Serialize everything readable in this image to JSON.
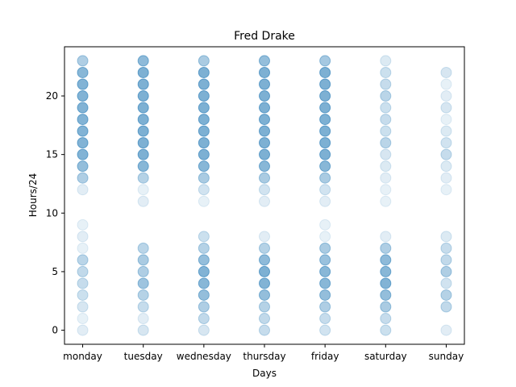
{
  "chart_data": {
    "type": "scatter",
    "title": "Fred Drake",
    "xlabel": "Days",
    "ylabel": "Hours/24",
    "categories": [
      "monday",
      "tuesday",
      "wednesday",
      "thursday",
      "friday",
      "saturday",
      "sunday"
    ],
    "yticks": [
      "0",
      "5",
      "10",
      "15",
      "20"
    ],
    "ylim": [
      -1.2,
      24.2
    ],
    "grid": false,
    "marker_color": "#1f77b4",
    "opacity": {
      "monday": [
        0.1,
        0.05,
        0.2,
        0.3,
        0.35,
        0.4,
        0.45,
        0.05,
        0.1,
        0.05,
        0,
        0,
        0.1,
        0.55,
        0.8,
        0.95,
        0.95,
        0.95,
        0.95,
        0.95,
        0.95,
        0.95,
        0.9,
        0.55
      ],
      "tuesday": [
        0.2,
        0.1,
        0.35,
        0.5,
        0.7,
        0.55,
        0.6,
        0.45,
        0,
        0,
        0,
        0.1,
        0.05,
        0.5,
        0.9,
        1.0,
        1.0,
        1.0,
        1.0,
        1.0,
        1.0,
        1.0,
        1.0,
        0.85
      ],
      "wednesday": [
        0.2,
        0.4,
        0.55,
        0.8,
        0.9,
        0.95,
        0.8,
        0.5,
        0.3,
        0,
        0,
        0.05,
        0.25,
        0.6,
        0.9,
        1.0,
        1.0,
        1.0,
        1.0,
        1.0,
        1.0,
        1.0,
        1.0,
        0.6
      ],
      "thursday": [
        0.35,
        0.4,
        0.5,
        0.8,
        0.95,
        1.0,
        0.85,
        0.5,
        0.1,
        0,
        0,
        0.1,
        0.25,
        0.6,
        0.9,
        1.0,
        1.0,
        1.0,
        1.0,
        1.0,
        1.0,
        1.0,
        1.0,
        0.8
      ],
      "friday": [
        0.25,
        0.35,
        0.55,
        0.8,
        0.9,
        0.9,
        0.75,
        0.6,
        0.05,
        0.05,
        0,
        0.1,
        0.25,
        0.6,
        0.9,
        1.0,
        1.0,
        1.0,
        1.0,
        1.0,
        1.0,
        1.0,
        1.0,
        0.65
      ],
      "saturday": [
        0.3,
        0.35,
        0.6,
        0.8,
        0.95,
        0.9,
        0.85,
        0.55,
        0.1,
        0,
        0,
        0.05,
        0.05,
        0.1,
        0.15,
        0.2,
        0.45,
        0.3,
        0.35,
        0.3,
        0.45,
        0.35,
        0.3,
        0.15
      ],
      "sunday": [
        0.1,
        0,
        0.4,
        0.5,
        0.25,
        0.55,
        0.4,
        0.35,
        0.15,
        0,
        0,
        0,
        0.05,
        0.1,
        0.15,
        0.35,
        0.25,
        0.15,
        0.05,
        0.2,
        0.1,
        0.05,
        0.2,
        0
      ]
    }
  }
}
